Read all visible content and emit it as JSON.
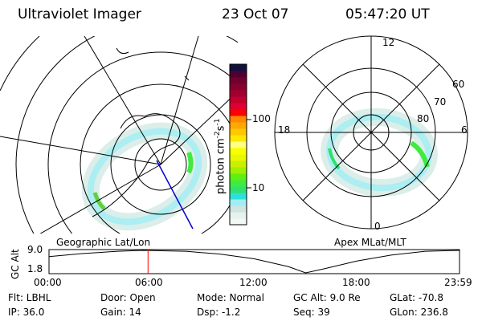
{
  "header": {
    "title": "Ultraviolet Imager",
    "date": "23 Oct 07",
    "time": "05:47:20 UT"
  },
  "left_panel": {
    "label": "Geographic Lat/Lon"
  },
  "right_panel": {
    "label": "Apex MLat/MLT",
    "mlt_labels": [
      "12",
      "6",
      "0",
      "18"
    ],
    "lat_labels": [
      "60",
      "70",
      "80"
    ]
  },
  "colorbar": {
    "unit_label": "photon cm",
    "exp1": "-2",
    "mid": "s",
    "exp2": "-1",
    "tick_labels": [
      "100",
      "10"
    ],
    "scale": "log",
    "colors": [
      "#f4f8f4",
      "#e6f2ec",
      "#d0e4e0",
      "#a0eef4",
      "#30e0d8",
      "#30e070",
      "#40ea40",
      "#60f010",
      "#a0f000",
      "#c8f000",
      "#e8f800",
      "#f8ff00",
      "#ffff80",
      "#ffe800",
      "#ffc800",
      "#ffa800",
      "#ff8800",
      "#ff0000",
      "#e00030",
      "#c00030",
      "#a00030",
      "#880030",
      "#700030",
      "#500030",
      "#101040"
    ]
  },
  "chart_data": {
    "type": "line",
    "ylabel": "GC Alt",
    "yticks": [
      "9.0",
      "1.8"
    ],
    "ylim": [
      1.8,
      9.0
    ],
    "xticks": [
      "00:00",
      "06:00",
      "12:00",
      "18:00",
      "23:59"
    ],
    "x_hours": [
      0,
      2,
      4,
      5.5,
      8,
      10,
      12,
      14,
      15,
      16,
      18,
      20,
      22,
      24
    ],
    "values": [
      7.0,
      8.0,
      8.7,
      9.0,
      8.7,
      7.8,
      6.3,
      3.8,
      1.8,
      3.0,
      5.6,
      7.5,
      8.7,
      9.0
    ],
    "current_time_hours": 5.79,
    "current_marker_color": "#ff0000"
  },
  "footer": {
    "rows": [
      [
        "Flt: LBHL",
        "Door: Open",
        "Mode: Normal",
        "GC Alt: 9.0 Re",
        "GLat: -70.8"
      ],
      [
        "IP: 36.0",
        "Gain: 14",
        "Dsp:    -1.2",
        "Seq: 39",
        "GLon: 236.8"
      ]
    ]
  }
}
